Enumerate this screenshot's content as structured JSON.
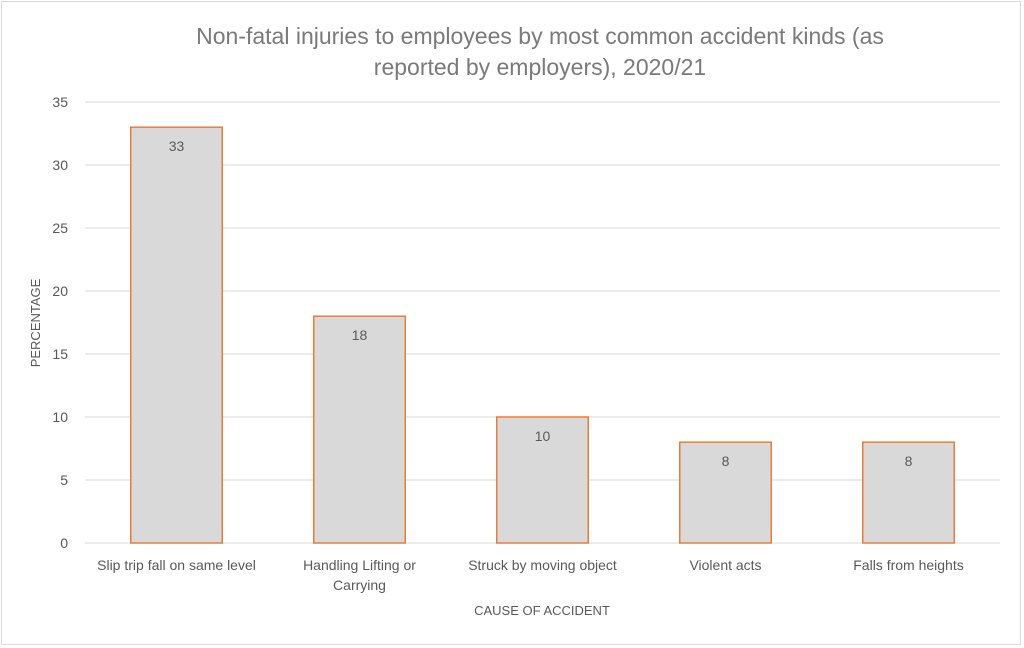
{
  "chart_data": {
    "type": "bar",
    "title_lines": [
      "Non-fatal injuries to employees by most common accident kinds (as",
      "reported by employers), 2020/21"
    ],
    "categories": [
      [
        "Slip trip fall on same level"
      ],
      [
        "Handling Lifting or",
        "Carrying"
      ],
      [
        "Struck by moving object"
      ],
      [
        "Violent acts"
      ],
      [
        "Falls from heights"
      ]
    ],
    "values": [
      33,
      18,
      10,
      8,
      8
    ],
    "data_labels": [
      "33",
      "18",
      "10",
      "8",
      "8"
    ],
    "xlabel": "CAUSE OF ACCIDENT",
    "ylabel": "PERCENTAGE",
    "ylim": [
      0,
      35
    ],
    "yticks": [
      0,
      5,
      10,
      15,
      20,
      25,
      30,
      35
    ],
    "grid": true,
    "legend": "none",
    "colors": {
      "bar_fill": "#d9d9d9",
      "bar_stroke": "#ed7d31",
      "grid": "#d9d9d9"
    }
  }
}
